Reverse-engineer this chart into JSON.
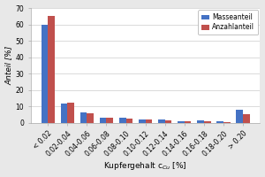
{
  "categories": [
    "< 0.02",
    "0.02-0.04",
    "0.04-0.06",
    "0.06-0.08",
    "0.08-0.10",
    "0.10-0.12",
    "0.12-0.14",
    "0.14-0.16",
    "0.16-0.18",
    "0.18-0.20",
    "> 0.20"
  ],
  "masseanteil": [
    60,
    11.5,
    6.5,
    3,
    3,
    2,
    2,
    1,
    1.2,
    0.8,
    8
  ],
  "anzahlanteil": [
    65,
    12.5,
    5.5,
    3,
    2.5,
    2,
    1.5,
    1,
    1,
    0.5,
    5
  ],
  "bar_color_masse": "#4472c4",
  "bar_color_anzahl": "#c0504d",
  "ylabel": "Anteil [%]",
  "xlabel_base": "Kupfergehalt c",
  "xlabel_sub": "Cu",
  "xlabel_end": " [%]",
  "legend_masse": "Masseanteil",
  "legend_anzahl": "Anzahlanteil",
  "ylim": [
    0,
    70
  ],
  "yticks": [
    0,
    10,
    20,
    30,
    40,
    50,
    60,
    70
  ],
  "axis_fontsize": 6.5,
  "tick_fontsize": 5.5,
  "legend_fontsize": 5.5,
  "background_color": "#e8e8e8",
  "plot_bg_color": "#ffffff",
  "grid_color": "#cccccc",
  "bar_width": 0.35
}
